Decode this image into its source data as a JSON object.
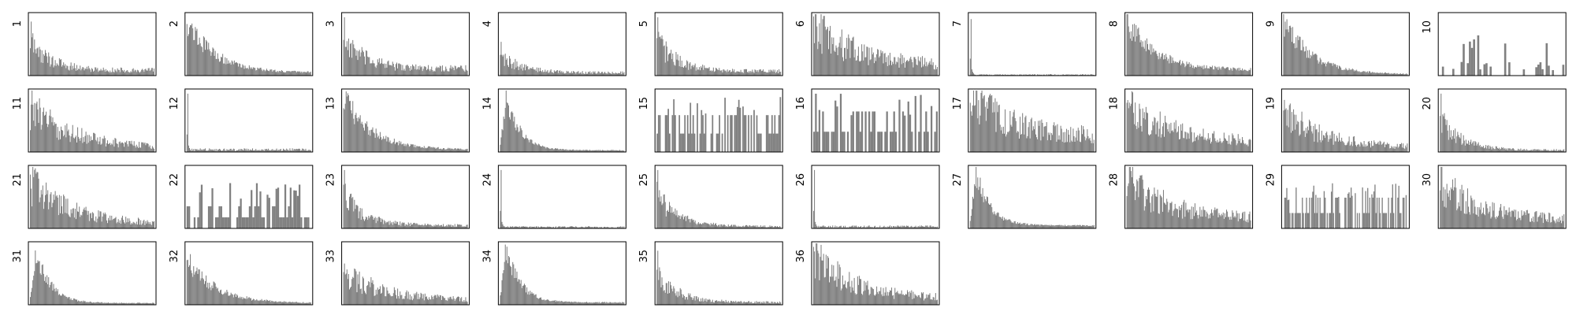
{
  "chart_data": {
    "type": "bar",
    "layout": "small-multiples grid, 10 columns, 4 rows",
    "panel_labels": [
      "1",
      "2",
      "3",
      "4",
      "5",
      "6",
      "7",
      "8",
      "9",
      "10",
      "11",
      "12",
      "13",
      "14",
      "15",
      "16",
      "17",
      "18",
      "19",
      "20",
      "21",
      "22",
      "23",
      "24",
      "25",
      "26",
      "27",
      "28",
      "29",
      "30",
      "31",
      "32",
      "33",
      "34",
      "35",
      "36"
    ],
    "panel_shapes": [
      {
        "shape": "spike-decay",
        "peak": 0.88,
        "tail": 0.22,
        "bins": 150
      },
      {
        "shape": "decay",
        "peak": 0.95,
        "tail": 0.05,
        "bins": 150
      },
      {
        "shape": "spike-decay",
        "peak": 0.95,
        "tail": 0.3,
        "bins": 150
      },
      {
        "shape": "spike-decay",
        "peak": 0.55,
        "tail": 0.12,
        "bins": 150
      },
      {
        "shape": "spike-decay",
        "peak": 0.95,
        "tail": 0.18,
        "bins": 150
      },
      {
        "shape": "noisy-decay",
        "peak": 0.95,
        "tail": 0.2,
        "bins": 150
      },
      {
        "shape": "spike",
        "peak": 0.92,
        "tail": 0.02,
        "bins": 150
      },
      {
        "shape": "decay",
        "peak": 0.92,
        "tail": 0.1,
        "bins": 150
      },
      {
        "shape": "decay",
        "peak": 0.98,
        "tail": 0.02,
        "bins": 150
      },
      {
        "shape": "sparse",
        "peak": 0.7,
        "tail": 0.15,
        "bins": 60
      },
      {
        "shape": "noisy-decay",
        "peak": 0.95,
        "tail": 0.08,
        "bins": 150
      },
      {
        "shape": "spike",
        "peak": 0.95,
        "tail": 0.05,
        "bins": 150
      },
      {
        "shape": "decay",
        "peak": 0.95,
        "tail": 0.04,
        "bins": 150
      },
      {
        "shape": "peak-decay",
        "peak": 0.95,
        "tail": 0.03,
        "bins": 150
      },
      {
        "shape": "uniform-sparse",
        "peak": 0.95,
        "tail": 0.3,
        "bins": 90
      },
      {
        "shape": "uniform-sparse",
        "peak": 0.95,
        "tail": 0.33,
        "bins": 70
      },
      {
        "shape": "noisy-decay",
        "peak": 0.9,
        "tail": 0.3,
        "bins": 150
      },
      {
        "shape": "noisy-decay",
        "peak": 0.95,
        "tail": 0.18,
        "bins": 150
      },
      {
        "shape": "noisy-decay",
        "peak": 0.82,
        "tail": 0.08,
        "bins": 150
      },
      {
        "shape": "spike-decay",
        "peak": 0.95,
        "tail": 0.08,
        "bins": 150
      },
      {
        "shape": "noisy-decay",
        "peak": 0.95,
        "tail": 0.08,
        "bins": 150
      },
      {
        "shape": "uniform-sparse",
        "peak": 0.75,
        "tail": 0.18,
        "bins": 70
      },
      {
        "shape": "spike-decay",
        "peak": 0.95,
        "tail": 0.12,
        "bins": 150
      },
      {
        "shape": "spike",
        "peak": 0.95,
        "tail": 0.03,
        "bins": 150
      },
      {
        "shape": "spike-decay",
        "peak": 0.95,
        "tail": 0.08,
        "bins": 150
      },
      {
        "shape": "spike",
        "peak": 0.95,
        "tail": 0.04,
        "bins": 150
      },
      {
        "shape": "peak-decay",
        "peak": 0.9,
        "tail": 0.05,
        "bins": 150
      },
      {
        "shape": "noisy-decay",
        "peak": 0.92,
        "tail": 0.18,
        "bins": 150
      },
      {
        "shape": "uniform-sparse",
        "peak": 0.75,
        "tail": 0.25,
        "bins": 120
      },
      {
        "shape": "noisy-decay",
        "peak": 0.92,
        "tail": 0.15,
        "bins": 150
      },
      {
        "shape": "peak-decay",
        "peak": 0.92,
        "tail": 0.03,
        "bins": 150
      },
      {
        "shape": "decay",
        "peak": 0.8,
        "tail": 0.03,
        "bins": 150
      },
      {
        "shape": "noisy-decay",
        "peak": 0.65,
        "tail": 0.08,
        "bins": 150
      },
      {
        "shape": "peak-decay",
        "peak": 0.95,
        "tail": 0.04,
        "bins": 150
      },
      {
        "shape": "spike-decay",
        "peak": 0.88,
        "tail": 0.1,
        "bins": 150
      },
      {
        "shape": "noisy-decay",
        "peak": 0.95,
        "tail": 0.12,
        "bins": 150
      }
    ],
    "bar_color": "#808080",
    "frame_color": "#000000",
    "ticks": "none",
    "grid": false,
    "legend": "none",
    "ylim": [
      0,
      1
    ]
  }
}
